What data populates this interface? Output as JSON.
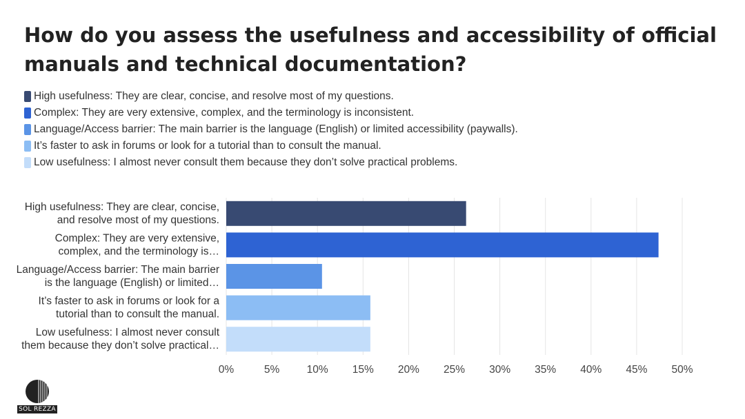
{
  "title": "How do you assess the usefulness and accessibility of official manuals and technical documentation?",
  "logo": {
    "text": "SOL REZZA"
  },
  "colors": [
    "#384a72",
    "#2e63d3",
    "#5b94e6",
    "#8cbdf4",
    "#c3ddfa"
  ],
  "legend": [
    "High usefulness: They are clear, concise, and resolve most of my questions.",
    "Complex: They are very extensive, complex, and the terminology is inconsistent.",
    "Language/Access barrier: The main barrier is the language (English) or limited accessibility (paywalls).",
    "It’s faster to ask in forums or look for a tutorial than to consult the manual.",
    "Low usefulness: I almost never consult them because they don’t solve practical problems."
  ],
  "chart_data": {
    "type": "bar",
    "orientation": "horizontal",
    "title": "How do you assess the usefulness and accessibility of official manuals and technical documentation?",
    "categories": [
      [
        "High usefulness: They are clear, concise,",
        "and resolve most of my questions."
      ],
      [
        "Complex: They are very extensive,",
        "complex, and the terminology is…"
      ],
      [
        "Language/Access barrier: The main barrier",
        "is the language (English) or limited…"
      ],
      [
        "It’s faster to ask in forums or look for a",
        "tutorial than to consult the manual."
      ],
      [
        "Low usefulness: I almost never consult",
        "them because they don’t solve practical…"
      ]
    ],
    "values": [
      26.3,
      47.4,
      10.5,
      15.8,
      15.8
    ],
    "unit": "%",
    "xlim": [
      0,
      50
    ],
    "xticks": [
      0,
      5,
      10,
      15,
      20,
      25,
      30,
      35,
      40,
      45,
      50
    ],
    "xtick_labels": [
      "0%",
      "5%",
      "10%",
      "15%",
      "20%",
      "25%",
      "30%",
      "35%",
      "40%",
      "45%",
      "50%"
    ],
    "grid": "vertical",
    "legend_position": "top-left"
  }
}
